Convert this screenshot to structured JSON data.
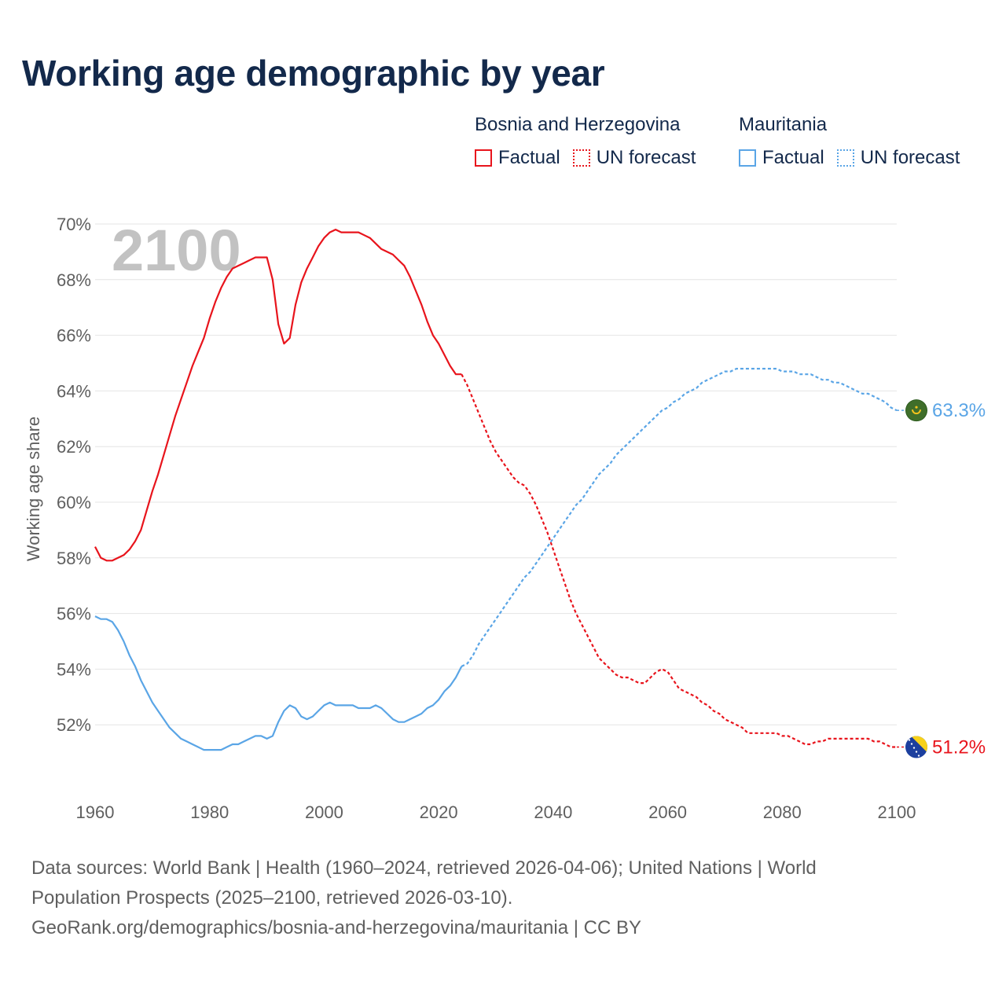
{
  "title": "Working age demographic by year",
  "legend": {
    "groups": [
      {
        "name": "Bosnia and Herzegovina",
        "factual_label": "Factual",
        "forecast_label": "UN forecast",
        "color": "#e8141c"
      },
      {
        "name": "Mauritania",
        "factual_label": "Factual",
        "forecast_label": "UN forecast",
        "color": "#5aa5e6"
      }
    ]
  },
  "year_watermark": "2100",
  "end_labels": {
    "mauritania": "63.3%",
    "bosnia": "51.2%"
  },
  "footer": {
    "line1": "Data sources: World Bank | Health (1960–2024, retrieved 2026-04-06); United Nations | World",
    "line2": "Population Prospects (2025–2100, retrieved 2026-03-10).",
    "line3": "GeoRank.org/demographics/bosnia-and-herzegovina/mauritania | CC BY"
  },
  "chart_data": {
    "type": "line",
    "title": "Working age demographic by year",
    "xlabel": "",
    "ylabel": "Working age share",
    "xlim": [
      1960,
      2100
    ],
    "ylim": [
      50,
      70
    ],
    "x_ticks": [
      "1960",
      "1980",
      "2000",
      "2020",
      "2040",
      "2060",
      "2080",
      "2100"
    ],
    "y_ticks": [
      "52%",
      "54%",
      "56%",
      "58%",
      "60%",
      "62%",
      "64%",
      "66%",
      "68%",
      "70%"
    ],
    "grid": true,
    "factual_range": [
      1960,
      2024
    ],
    "forecast_range": [
      2024,
      2100
    ],
    "series": [
      {
        "name": "Bosnia and Herzegovina",
        "color": "#e8141c",
        "points": [
          [
            1960,
            58.4
          ],
          [
            1961,
            58.0
          ],
          [
            1962,
            57.9
          ],
          [
            1963,
            57.9
          ],
          [
            1964,
            58.0
          ],
          [
            1965,
            58.1
          ],
          [
            1966,
            58.3
          ],
          [
            1967,
            58.6
          ],
          [
            1968,
            59.0
          ],
          [
            1969,
            59.7
          ],
          [
            1970,
            60.4
          ],
          [
            1971,
            61.0
          ],
          [
            1972,
            61.7
          ],
          [
            1973,
            62.4
          ],
          [
            1974,
            63.1
          ],
          [
            1975,
            63.7
          ],
          [
            1976,
            64.3
          ],
          [
            1977,
            64.9
          ],
          [
            1978,
            65.4
          ],
          [
            1979,
            65.9
          ],
          [
            1980,
            66.6
          ],
          [
            1981,
            67.2
          ],
          [
            1982,
            67.7
          ],
          [
            1983,
            68.1
          ],
          [
            1984,
            68.4
          ],
          [
            1985,
            68.5
          ],
          [
            1986,
            68.6
          ],
          [
            1987,
            68.7
          ],
          [
            1988,
            68.8
          ],
          [
            1989,
            68.8
          ],
          [
            1990,
            68.8
          ],
          [
            1991,
            68.0
          ],
          [
            1992,
            66.4
          ],
          [
            1993,
            65.7
          ],
          [
            1994,
            65.9
          ],
          [
            1995,
            67.1
          ],
          [
            1996,
            67.9
          ],
          [
            1997,
            68.4
          ],
          [
            1998,
            68.8
          ],
          [
            1999,
            69.2
          ],
          [
            2000,
            69.5
          ],
          [
            2001,
            69.7
          ],
          [
            2002,
            69.8
          ],
          [
            2003,
            69.7
          ],
          [
            2004,
            69.7
          ],
          [
            2005,
            69.7
          ],
          [
            2006,
            69.7
          ],
          [
            2007,
            69.6
          ],
          [
            2008,
            69.5
          ],
          [
            2009,
            69.3
          ],
          [
            2010,
            69.1
          ],
          [
            2011,
            69.0
          ],
          [
            2012,
            68.9
          ],
          [
            2013,
            68.7
          ],
          [
            2014,
            68.5
          ],
          [
            2015,
            68.1
          ],
          [
            2016,
            67.6
          ],
          [
            2017,
            67.1
          ],
          [
            2018,
            66.5
          ],
          [
            2019,
            66.0
          ],
          [
            2020,
            65.7
          ],
          [
            2021,
            65.3
          ],
          [
            2022,
            64.9
          ],
          [
            2023,
            64.6
          ],
          [
            2024,
            64.6
          ],
          [
            2025,
            64.2
          ],
          [
            2026,
            63.7
          ],
          [
            2027,
            63.2
          ],
          [
            2028,
            62.7
          ],
          [
            2029,
            62.2
          ],
          [
            2030,
            61.8
          ],
          [
            2031,
            61.5
          ],
          [
            2032,
            61.2
          ],
          [
            2033,
            60.9
          ],
          [
            2034,
            60.7
          ],
          [
            2035,
            60.6
          ],
          [
            2036,
            60.3
          ],
          [
            2037,
            59.9
          ],
          [
            2038,
            59.4
          ],
          [
            2039,
            58.9
          ],
          [
            2040,
            58.3
          ],
          [
            2041,
            57.7
          ],
          [
            2042,
            57.1
          ],
          [
            2043,
            56.5
          ],
          [
            2044,
            56.0
          ],
          [
            2045,
            55.6
          ],
          [
            2046,
            55.2
          ],
          [
            2047,
            54.8
          ],
          [
            2048,
            54.4
          ],
          [
            2049,
            54.2
          ],
          [
            2050,
            54.0
          ],
          [
            2051,
            53.8
          ],
          [
            2052,
            53.7
          ],
          [
            2053,
            53.7
          ],
          [
            2054,
            53.6
          ],
          [
            2055,
            53.5
          ],
          [
            2056,
            53.5
          ],
          [
            2057,
            53.7
          ],
          [
            2058,
            53.9
          ],
          [
            2059,
            54.0
          ],
          [
            2060,
            53.9
          ],
          [
            2061,
            53.6
          ],
          [
            2062,
            53.3
          ],
          [
            2063,
            53.2
          ],
          [
            2064,
            53.1
          ],
          [
            2065,
            53.0
          ],
          [
            2066,
            52.8
          ],
          [
            2067,
            52.7
          ],
          [
            2068,
            52.5
          ],
          [
            2069,
            52.4
          ],
          [
            2070,
            52.2
          ],
          [
            2071,
            52.1
          ],
          [
            2072,
            52.0
          ],
          [
            2073,
            51.9
          ],
          [
            2074,
            51.7
          ],
          [
            2075,
            51.7
          ],
          [
            2076,
            51.7
          ],
          [
            2077,
            51.7
          ],
          [
            2078,
            51.7
          ],
          [
            2079,
            51.7
          ],
          [
            2080,
            51.6
          ],
          [
            2081,
            51.6
          ],
          [
            2082,
            51.5
          ],
          [
            2083,
            51.4
          ],
          [
            2084,
            51.3
          ],
          [
            2085,
            51.3
          ],
          [
            2086,
            51.4
          ],
          [
            2087,
            51.4
          ],
          [
            2088,
            51.5
          ],
          [
            2089,
            51.5
          ],
          [
            2090,
            51.5
          ],
          [
            2091,
            51.5
          ],
          [
            2092,
            51.5
          ],
          [
            2093,
            51.5
          ],
          [
            2094,
            51.5
          ],
          [
            2095,
            51.5
          ],
          [
            2096,
            51.4
          ],
          [
            2097,
            51.4
          ],
          [
            2098,
            51.3
          ],
          [
            2099,
            51.2
          ],
          [
            2100,
            51.2
          ]
        ]
      },
      {
        "name": "Mauritania",
        "color": "#5aa5e6",
        "points": [
          [
            1960,
            55.9
          ],
          [
            1961,
            55.8
          ],
          [
            1962,
            55.8
          ],
          [
            1963,
            55.7
          ],
          [
            1964,
            55.4
          ],
          [
            1965,
            55.0
          ],
          [
            1966,
            54.5
          ],
          [
            1967,
            54.1
          ],
          [
            1968,
            53.6
          ],
          [
            1969,
            53.2
          ],
          [
            1970,
            52.8
          ],
          [
            1971,
            52.5
          ],
          [
            1972,
            52.2
          ],
          [
            1973,
            51.9
          ],
          [
            1974,
            51.7
          ],
          [
            1975,
            51.5
          ],
          [
            1976,
            51.4
          ],
          [
            1977,
            51.3
          ],
          [
            1978,
            51.2
          ],
          [
            1979,
            51.1
          ],
          [
            1980,
            51.1
          ],
          [
            1981,
            51.1
          ],
          [
            1982,
            51.1
          ],
          [
            1983,
            51.2
          ],
          [
            1984,
            51.3
          ],
          [
            1985,
            51.3
          ],
          [
            1986,
            51.4
          ],
          [
            1987,
            51.5
          ],
          [
            1988,
            51.6
          ],
          [
            1989,
            51.6
          ],
          [
            1990,
            51.5
          ],
          [
            1991,
            51.6
          ],
          [
            1992,
            52.1
          ],
          [
            1993,
            52.5
          ],
          [
            1994,
            52.7
          ],
          [
            1995,
            52.6
          ],
          [
            1996,
            52.3
          ],
          [
            1997,
            52.2
          ],
          [
            1998,
            52.3
          ],
          [
            1999,
            52.5
          ],
          [
            2000,
            52.7
          ],
          [
            2001,
            52.8
          ],
          [
            2002,
            52.7
          ],
          [
            2003,
            52.7
          ],
          [
            2004,
            52.7
          ],
          [
            2005,
            52.7
          ],
          [
            2006,
            52.6
          ],
          [
            2007,
            52.6
          ],
          [
            2008,
            52.6
          ],
          [
            2009,
            52.7
          ],
          [
            2010,
            52.6
          ],
          [
            2011,
            52.4
          ],
          [
            2012,
            52.2
          ],
          [
            2013,
            52.1
          ],
          [
            2014,
            52.1
          ],
          [
            2015,
            52.2
          ],
          [
            2016,
            52.3
          ],
          [
            2017,
            52.4
          ],
          [
            2018,
            52.6
          ],
          [
            2019,
            52.7
          ],
          [
            2020,
            52.9
          ],
          [
            2021,
            53.2
          ],
          [
            2022,
            53.4
          ],
          [
            2023,
            53.7
          ],
          [
            2024,
            54.1
          ],
          [
            2025,
            54.2
          ],
          [
            2026,
            54.5
          ],
          [
            2027,
            54.9
          ],
          [
            2028,
            55.2
          ],
          [
            2029,
            55.5
          ],
          [
            2030,
            55.8
          ],
          [
            2031,
            56.1
          ],
          [
            2032,
            56.4
          ],
          [
            2033,
            56.7
          ],
          [
            2034,
            57.0
          ],
          [
            2035,
            57.3
          ],
          [
            2036,
            57.5
          ],
          [
            2037,
            57.8
          ],
          [
            2038,
            58.1
          ],
          [
            2039,
            58.4
          ],
          [
            2040,
            58.7
          ],
          [
            2041,
            59.0
          ],
          [
            2042,
            59.3
          ],
          [
            2043,
            59.6
          ],
          [
            2044,
            59.9
          ],
          [
            2045,
            60.1
          ],
          [
            2046,
            60.4
          ],
          [
            2047,
            60.7
          ],
          [
            2048,
            61.0
          ],
          [
            2049,
            61.2
          ],
          [
            2050,
            61.4
          ],
          [
            2051,
            61.7
          ],
          [
            2052,
            61.9
          ],
          [
            2053,
            62.1
          ],
          [
            2054,
            62.3
          ],
          [
            2055,
            62.5
          ],
          [
            2056,
            62.7
          ],
          [
            2057,
            62.9
          ],
          [
            2058,
            63.1
          ],
          [
            2059,
            63.3
          ],
          [
            2060,
            63.4
          ],
          [
            2061,
            63.6
          ],
          [
            2062,
            63.7
          ],
          [
            2063,
            63.9
          ],
          [
            2064,
            64.0
          ],
          [
            2065,
            64.1
          ],
          [
            2066,
            64.3
          ],
          [
            2067,
            64.4
          ],
          [
            2068,
            64.5
          ],
          [
            2069,
            64.6
          ],
          [
            2070,
            64.7
          ],
          [
            2071,
            64.7
          ],
          [
            2072,
            64.8
          ],
          [
            2073,
            64.8
          ],
          [
            2074,
            64.8
          ],
          [
            2075,
            64.8
          ],
          [
            2076,
            64.8
          ],
          [
            2077,
            64.8
          ],
          [
            2078,
            64.8
          ],
          [
            2079,
            64.8
          ],
          [
            2080,
            64.7
          ],
          [
            2081,
            64.7
          ],
          [
            2082,
            64.7
          ],
          [
            2083,
            64.6
          ],
          [
            2084,
            64.6
          ],
          [
            2085,
            64.6
          ],
          [
            2086,
            64.5
          ],
          [
            2087,
            64.4
          ],
          [
            2088,
            64.4
          ],
          [
            2089,
            64.3
          ],
          [
            2090,
            64.3
          ],
          [
            2091,
            64.2
          ],
          [
            2092,
            64.1
          ],
          [
            2093,
            64.0
          ],
          [
            2094,
            63.9
          ],
          [
            2095,
            63.9
          ],
          [
            2096,
            63.8
          ],
          [
            2097,
            63.7
          ],
          [
            2098,
            63.6
          ],
          [
            2099,
            63.4
          ],
          [
            2100,
            63.3
          ]
        ]
      }
    ]
  }
}
